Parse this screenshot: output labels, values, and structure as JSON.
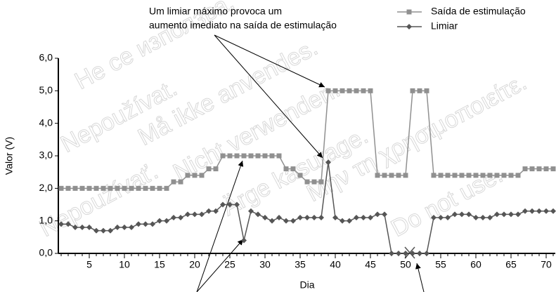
{
  "chart_data": {
    "type": "line",
    "annotation": [
      "Um limiar máximo provoca um",
      "aumento imediato na saída de estimulação"
    ],
    "x_label": "Dia",
    "y_label": "Valor (V)",
    "x": [
      1,
      2,
      3,
      4,
      5,
      6,
      7,
      8,
      9,
      10,
      11,
      12,
      13,
      14,
      15,
      16,
      17,
      18,
      19,
      20,
      21,
      22,
      23,
      24,
      25,
      26,
      27,
      28,
      29,
      30,
      31,
      32,
      33,
      34,
      35,
      36,
      37,
      38,
      39,
      40,
      41,
      42,
      43,
      44,
      45,
      46,
      47,
      48,
      49,
      50,
      51,
      52,
      53,
      54,
      55,
      56,
      57,
      58,
      59,
      60,
      61,
      62,
      63,
      64,
      65,
      66,
      67,
      68,
      69,
      70,
      71
    ],
    "series": [
      {
        "name": "Saída de estimulação",
        "color": "#909090",
        "marker": "square",
        "values": [
          2.0,
          2.0,
          2.0,
          2.0,
          2.0,
          2.0,
          2.0,
          2.0,
          2.0,
          2.0,
          2.0,
          2.0,
          2.0,
          2.0,
          2.0,
          2.0,
          2.2,
          2.2,
          2.4,
          2.4,
          2.4,
          2.6,
          2.6,
          3.0,
          3.0,
          3.0,
          3.0,
          3.0,
          3.0,
          3.0,
          3.0,
          3.0,
          2.6,
          2.6,
          2.4,
          2.2,
          2.2,
          2.2,
          5.0,
          5.0,
          5.0,
          5.0,
          5.0,
          5.0,
          5.0,
          2.4,
          2.4,
          2.4,
          2.4,
          2.4,
          5.0,
          5.0,
          5.0,
          2.4,
          2.4,
          2.4,
          2.4,
          2.4,
          2.4,
          2.4,
          2.4,
          2.4,
          2.4,
          2.4,
          2.4,
          2.4,
          2.6,
          2.6,
          2.6,
          2.6,
          2.6
        ]
      },
      {
        "name": "Limiar",
        "color": "#555555",
        "marker": "diamond",
        "values": [
          0.9,
          0.9,
          0.8,
          0.8,
          0.8,
          0.7,
          0.7,
          0.7,
          0.8,
          0.8,
          0.8,
          0.9,
          0.9,
          0.9,
          1.0,
          1.0,
          1.1,
          1.1,
          1.2,
          1.2,
          1.2,
          1.3,
          1.3,
          1.5,
          1.5,
          1.5,
          0.4,
          1.3,
          1.2,
          1.1,
          1.0,
          1.1,
          1.0,
          1.0,
          1.1,
          1.1,
          1.1,
          1.1,
          2.8,
          1.1,
          1.0,
          1.0,
          1.1,
          1.1,
          1.1,
          1.2,
          1.2,
          0.0,
          0.0,
          0.0,
          0.0,
          0.0,
          0.0,
          1.1,
          1.1,
          1.1,
          1.2,
          1.2,
          1.2,
          1.1,
          1.1,
          1.1,
          1.2,
          1.2,
          1.2,
          1.2,
          1.3,
          1.3,
          1.3,
          1.3,
          1.3
        ]
      }
    ],
    "xlim": [
      0.6,
      71.3
    ],
    "xticks": [
      5,
      10,
      15,
      20,
      25,
      30,
      35,
      40,
      45,
      50,
      55,
      60,
      65,
      70
    ],
    "ylim": [
      0,
      6
    ],
    "yticks": [
      {
        "value": 0,
        "label": "0,0"
      },
      {
        "value": 1,
        "label": "1,0"
      },
      {
        "value": 2,
        "label": "2,0"
      },
      {
        "value": 3,
        "label": "3,0"
      },
      {
        "value": 4,
        "label": "4,0"
      },
      {
        "value": 5,
        "label": "5,0"
      },
      {
        "value": 6,
        "label": "6,0"
      }
    ],
    "legend": "top-right",
    "watermarks": [
      "Не се използва.",
      "Nepoužívat.",
      "Må ikke anvendes.",
      "Nicht verwenden.",
      "Ärge kasutage.",
      "Μην τη χρησιμοποιείτε.",
      "Do not use.",
      "Nepoužívať."
    ]
  }
}
